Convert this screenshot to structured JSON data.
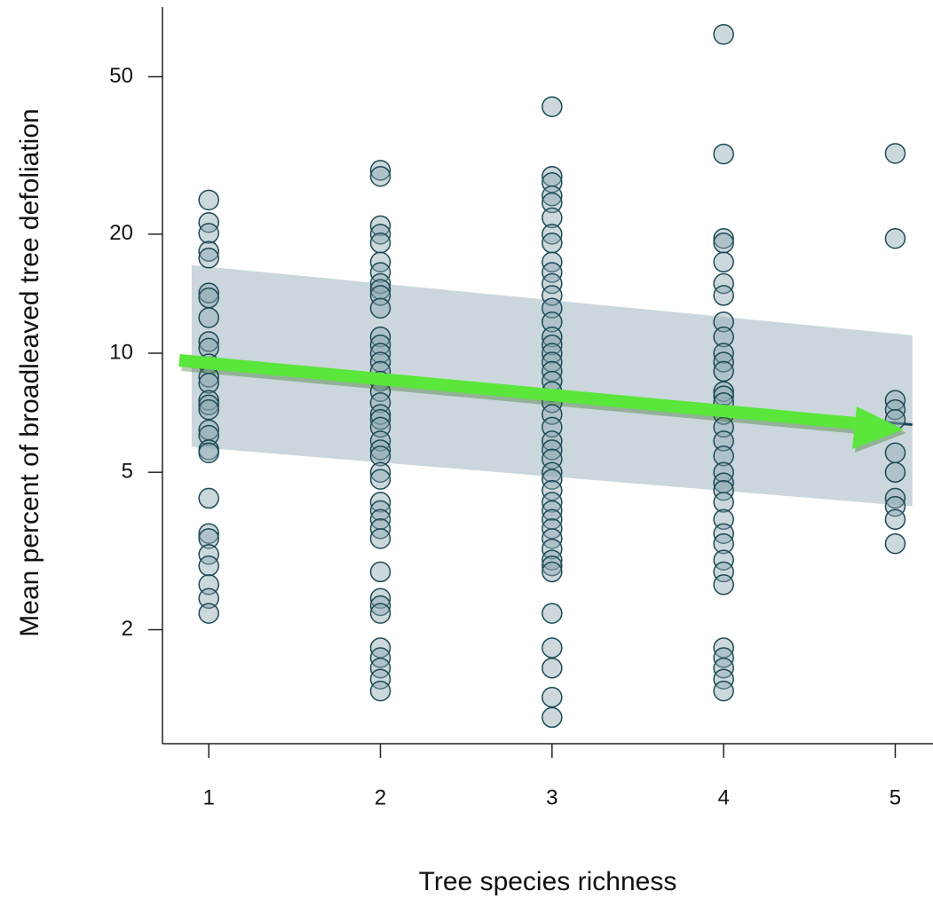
{
  "chart_data": {
    "type": "scatter",
    "x_label": "Tree species richness",
    "y_label": "Mean percent of broadleaved tree defoliation",
    "xlim": [
      0.73,
      5.22
    ],
    "ylim": [
      1.03,
      75
    ],
    "xticks": [
      1,
      2,
      3,
      4,
      5
    ],
    "yticks": [
      2,
      5,
      10,
      20,
      50
    ],
    "log_y": true,
    "point_color": "#8fa9b1",
    "edge_color": "#1c4a56",
    "groups": [
      {
        "x": 1,
        "values": [
          24.4,
          21.4,
          20.1,
          18.1,
          17.4,
          14.2,
          13.8,
          12.3,
          10.7,
          10.3,
          9.4,
          8.7,
          8.4,
          7.6,
          7.4,
          7.2,
          6.4,
          6.2,
          5.7,
          5.6,
          4.3,
          3.5,
          3.4,
          3.1,
          2.9,
          2.6,
          2.4,
          2.2
        ]
      },
      {
        "x": 2,
        "values": [
          29,
          28,
          21,
          20,
          19,
          17,
          16,
          15,
          14.5,
          14,
          13,
          11,
          10.5,
          10,
          9.5,
          9,
          8.5,
          8,
          7.5,
          7,
          6.8,
          6.5,
          6,
          5.7,
          5.5,
          5,
          4.8,
          4.2,
          4,
          3.8,
          3.6,
          3.4,
          2.8,
          2.4,
          2.3,
          2.2,
          1.8,
          1.7,
          1.6,
          1.5,
          1.4
        ]
      },
      {
        "x": 3,
        "values": [
          42,
          28,
          27,
          25,
          24,
          22,
          20,
          19,
          17,
          16,
          15,
          14,
          13,
          12,
          11,
          10.5,
          10,
          9.5,
          9,
          8.5,
          8,
          7.5,
          7,
          6.5,
          6,
          5.7,
          5.4,
          5,
          4.8,
          4.5,
          4.2,
          4,
          3.8,
          3.6,
          3.4,
          3.2,
          3,
          2.9,
          2.8,
          2.2,
          1.8,
          1.6,
          1.35,
          1.2
        ]
      },
      {
        "x": 4,
        "values": [
          64,
          31.9,
          19.5,
          19,
          17,
          15,
          14,
          12,
          11,
          10,
          9.5,
          9,
          8,
          7.8,
          7.5,
          7,
          6.5,
          6,
          5.5,
          5,
          4.7,
          4.5,
          4.2,
          3.8,
          3.5,
          3.3,
          3,
          2.8,
          2.6,
          1.8,
          1.7,
          1.6,
          1.5,
          1.4
        ]
      },
      {
        "x": 5,
        "values": [
          32,
          19.5,
          7.6,
          7.2,
          6.8,
          5.6,
          5,
          4.3,
          4.1,
          3.8,
          3.3
        ]
      }
    ],
    "fit": {
      "x": [
        0.9,
        5.1
      ],
      "values": [
        9.4,
        6.6
      ],
      "lower": [
        5.8,
        4.1
      ],
      "upper": [
        16.7,
        11.1
      ],
      "band_color": "#cbd7dc",
      "line_color": "#1c4a56"
    }
  }
}
